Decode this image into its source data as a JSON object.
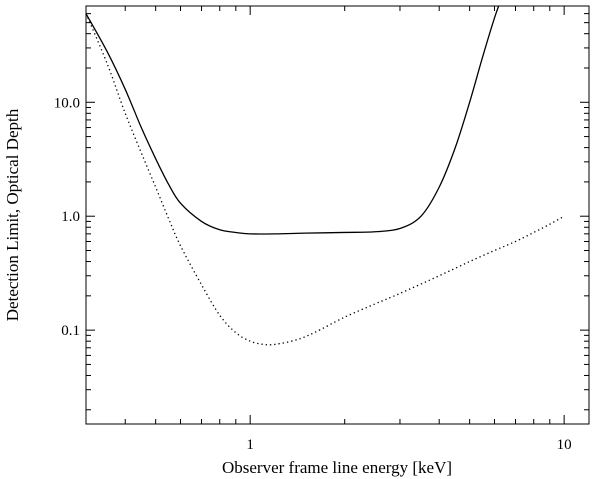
{
  "chart_data": {
    "type": "line",
    "title": "",
    "xlabel": "Observer frame line energy [keV]",
    "ylabel": "Detection Limit, Optical Depth",
    "x_scale": "log",
    "y_scale": "log",
    "xlim": [
      0.3,
      12
    ],
    "ylim": [
      0.015,
      70
    ],
    "x_ticks": [
      {
        "value": 1,
        "label": "1"
      },
      {
        "value": 10,
        "label": "10"
      }
    ],
    "y_ticks": [
      {
        "value": 0.1,
        "label": "0.1"
      },
      {
        "value": 1,
        "label": "1.0"
      },
      {
        "value": 10,
        "label": "10.0"
      }
    ],
    "grid": false,
    "series": [
      {
        "style": "solid",
        "x": [
          0.3,
          0.35,
          0.4,
          0.45,
          0.5,
          0.55,
          0.6,
          0.7,
          0.8,
          0.9,
          1.0,
          1.2,
          1.5,
          2.0,
          2.5,
          3.0,
          3.5,
          4.0,
          4.5,
          5.0,
          5.5,
          6.0,
          6.3
        ],
        "y": [
          60,
          28,
          13,
          6,
          3.2,
          1.9,
          1.3,
          0.9,
          0.76,
          0.72,
          0.7,
          0.7,
          0.71,
          0.72,
          0.73,
          0.78,
          1.0,
          1.8,
          4.0,
          10,
          25,
          55,
          80
        ]
      },
      {
        "style": "dotted",
        "x": [
          0.3,
          0.35,
          0.4,
          0.45,
          0.5,
          0.55,
          0.6,
          0.7,
          0.8,
          0.9,
          1.0,
          1.1,
          1.2,
          1.4,
          1.6,
          2.0,
          2.5,
          3.0,
          4.0,
          5.0,
          6.0,
          7.0,
          8.0,
          9.0,
          10.0
        ],
        "y": [
          60,
          22,
          8,
          3.6,
          1.8,
          0.95,
          0.55,
          0.25,
          0.135,
          0.095,
          0.08,
          0.075,
          0.075,
          0.082,
          0.095,
          0.13,
          0.17,
          0.21,
          0.3,
          0.4,
          0.5,
          0.6,
          0.72,
          0.85,
          1.0
        ]
      }
    ]
  }
}
